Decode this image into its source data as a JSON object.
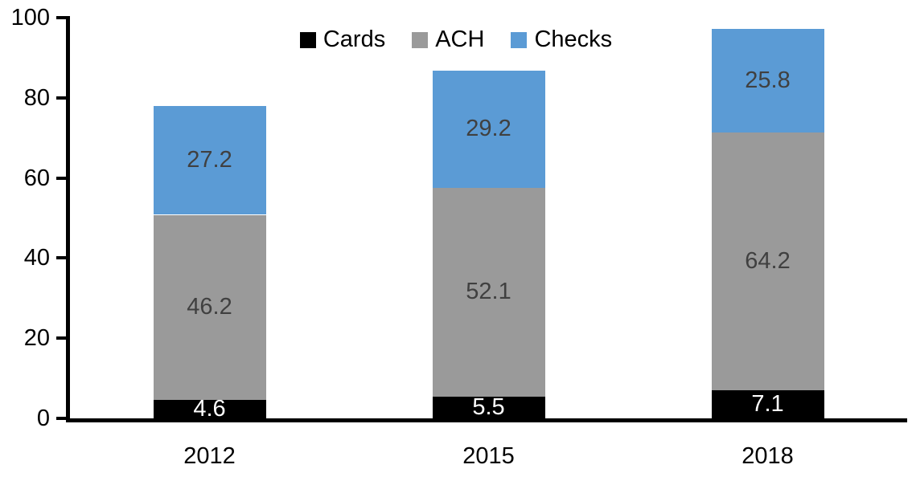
{
  "chart_data": {
    "type": "bar",
    "stacked": true,
    "title": "",
    "xlabel": "",
    "ylabel": "",
    "categories": [
      "2012",
      "2015",
      "2018"
    ],
    "series": [
      {
        "name": "Cards",
        "color": "#000000",
        "label_color": "#FFFFFF",
        "values": [
          4.6,
          5.5,
          7.1
        ]
      },
      {
        "name": "ACH",
        "color": "#9A9A9A",
        "label_color": "#404040",
        "values": [
          46.2,
          52.1,
          64.2
        ]
      },
      {
        "name": "Checks",
        "color": "#5B9BD5",
        "label_color": "#404040",
        "values": [
          27.2,
          29.2,
          25.8
        ]
      }
    ],
    "totals": [
      78.0,
      86.8,
      97.1
    ],
    "ylim": [
      0,
      100
    ],
    "yticks": [
      0,
      20,
      40,
      60,
      80,
      100
    ],
    "grid": false,
    "legend_position": "top-center",
    "axis_color": "#000000",
    "background_color": "#FFFFFF"
  }
}
